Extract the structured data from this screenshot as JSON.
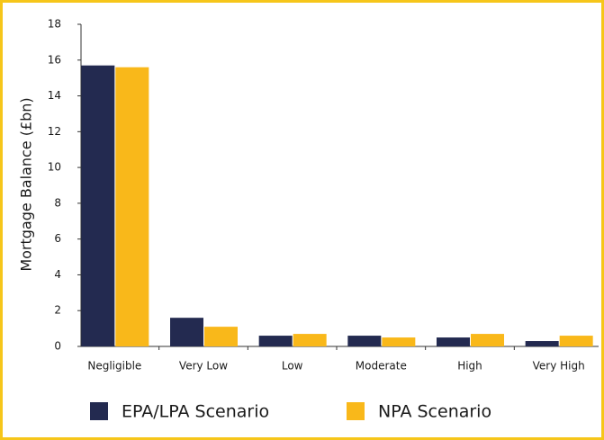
{
  "chart_data": {
    "type": "bar",
    "y_label": "Mortgage Balance (£bn)",
    "categories": [
      "Negligible",
      "Very Low",
      "Low",
      "Moderate",
      "High",
      "Very High"
    ],
    "series": [
      {
        "name": "EPA/LPA Scenario",
        "color": "#232a50",
        "values": [
          15.7,
          1.6,
          0.6,
          0.6,
          0.5,
          0.3
        ]
      },
      {
        "name": "NPA Scenario",
        "color": "#f9b81a",
        "values": [
          15.6,
          1.1,
          0.7,
          0.5,
          0.7,
          0.6
        ]
      }
    ],
    "ylim": [
      0,
      18
    ],
    "yticks": [
      0,
      2,
      4,
      6,
      8,
      10,
      12,
      14,
      16,
      18
    ],
    "grid": false,
    "legend": "bottom"
  }
}
